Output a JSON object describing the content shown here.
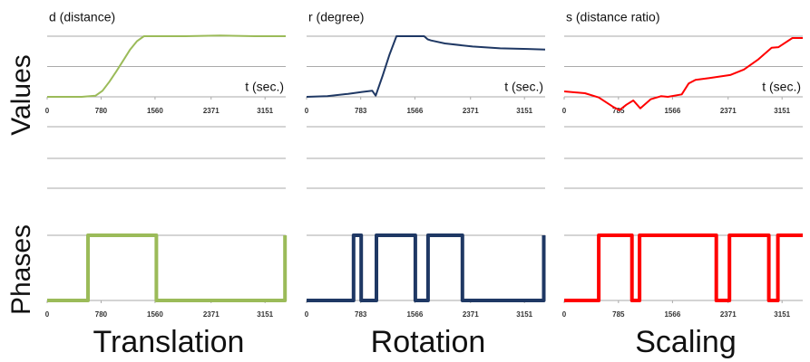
{
  "row_labels": [
    "Values",
    "Phases"
  ],
  "column_labels": [
    "Translation",
    "Rotation",
    "Scaling"
  ],
  "chart_data": [
    {
      "type": "line",
      "title": "d (distance)",
      "xlabel": "t (sec.)",
      "color": "#9bbb59",
      "x": [
        0,
        500,
        700,
        800,
        900,
        1000,
        1100,
        1200,
        1300,
        1400,
        1500,
        2000,
        2500,
        3000,
        3450
      ],
      "values": [
        0,
        0,
        0.02,
        0.1,
        0.25,
        0.42,
        0.6,
        0.78,
        0.92,
        1,
        1,
        1,
        1.01,
        1,
        1
      ],
      "xlim": [
        0,
        3450
      ],
      "xticks": [
        0,
        780,
        1560,
        2371,
        3151
      ],
      "ylim": [
        0,
        1
      ],
      "yticks": [
        0,
        0.5,
        1
      ],
      "grid": true
    },
    {
      "type": "line",
      "title": "r (degree)",
      "xlabel": "t (sec.)",
      "color": "#1f3864",
      "x": [
        0,
        300,
        600,
        800,
        950,
        1000,
        1100,
        1200,
        1300,
        1400,
        1700,
        1750,
        1800,
        2000,
        2400,
        2800,
        3200,
        3450
      ],
      "values": [
        0,
        0.01,
        0.05,
        0.08,
        0.1,
        0.02,
        0.35,
        0.7,
        1,
        1,
        1,
        0.95,
        0.93,
        0.88,
        0.83,
        0.8,
        0.79,
        0.78
      ],
      "xlim": [
        0,
        3450
      ],
      "xticks": [
        0,
        783,
        1566,
        2371,
        3151
      ],
      "ylim": [
        0,
        1
      ],
      "yticks": [
        0,
        0.5,
        1
      ],
      "grid": true
    },
    {
      "type": "line",
      "title": "s (distance ratio)",
      "xlabel": "t (sec.)",
      "color": "#ff0000",
      "x": [
        0,
        300,
        500,
        700,
        800,
        900,
        1000,
        1100,
        1250,
        1400,
        1500,
        1700,
        1800,
        1900,
        2100,
        2400,
        2600,
        2800,
        3000,
        3100,
        3300,
        3450
      ],
      "values": [
        0.09,
        0.06,
        -0.01,
        -0.16,
        -0.22,
        -0.13,
        -0.06,
        -0.19,
        -0.04,
        0.01,
        0,
        0.04,
        0.22,
        0.28,
        0.31,
        0.36,
        0.45,
        0.61,
        0.81,
        0.82,
        0.97,
        0.97
      ],
      "xlim": [
        0,
        3450
      ],
      "xticks": [
        0,
        785,
        1566,
        2371,
        3151
      ],
      "ylim": [
        0,
        1
      ],
      "yticks": [
        0,
        0.5,
        1
      ],
      "grid": true
    },
    {
      "type": "step",
      "color": "#9bbb59",
      "x": [
        0,
        590,
        590,
        1580,
        1580,
        3440,
        3440
      ],
      "values": [
        0,
        0,
        1,
        1,
        0,
        0,
        1
      ],
      "xlim": [
        0,
        3450
      ],
      "xticks": [
        0,
        780,
        1560,
        2371,
        3151
      ],
      "ylim": [
        0,
        1
      ],
      "yticks": [
        0,
        1
      ],
      "grid": true
    },
    {
      "type": "step",
      "color": "#1f3864",
      "x": [
        0,
        680,
        680,
        790,
        790,
        1010,
        1010,
        1573,
        1573,
        1756,
        1756,
        2254,
        2254,
        3430,
        3430
      ],
      "values": [
        0,
        0,
        1,
        1,
        0,
        0,
        1,
        1,
        0,
        0,
        1,
        1,
        0,
        0,
        1
      ],
      "xlim": [
        0,
        3450
      ],
      "xticks": [
        0,
        783,
        1566,
        2371,
        3151
      ],
      "ylim": [
        0,
        1
      ],
      "yticks": [
        0,
        1
      ],
      "grid": true
    },
    {
      "type": "step",
      "color": "#ff0000",
      "x": [
        0,
        500,
        500,
        980,
        980,
        1090,
        1090,
        2200,
        2200,
        2390,
        2390,
        2960,
        2960,
        3090,
        3090,
        3450
      ],
      "values": [
        0,
        0,
        1,
        1,
        0,
        0,
        1,
        1,
        0,
        0,
        1,
        1,
        0,
        0,
        1,
        1
      ],
      "xlim": [
        0,
        3450
      ],
      "xticks": [
        0,
        785,
        1566,
        2371,
        3151
      ],
      "ylim": [
        0,
        1
      ],
      "yticks": [
        0,
        1
      ],
      "grid": true
    }
  ]
}
